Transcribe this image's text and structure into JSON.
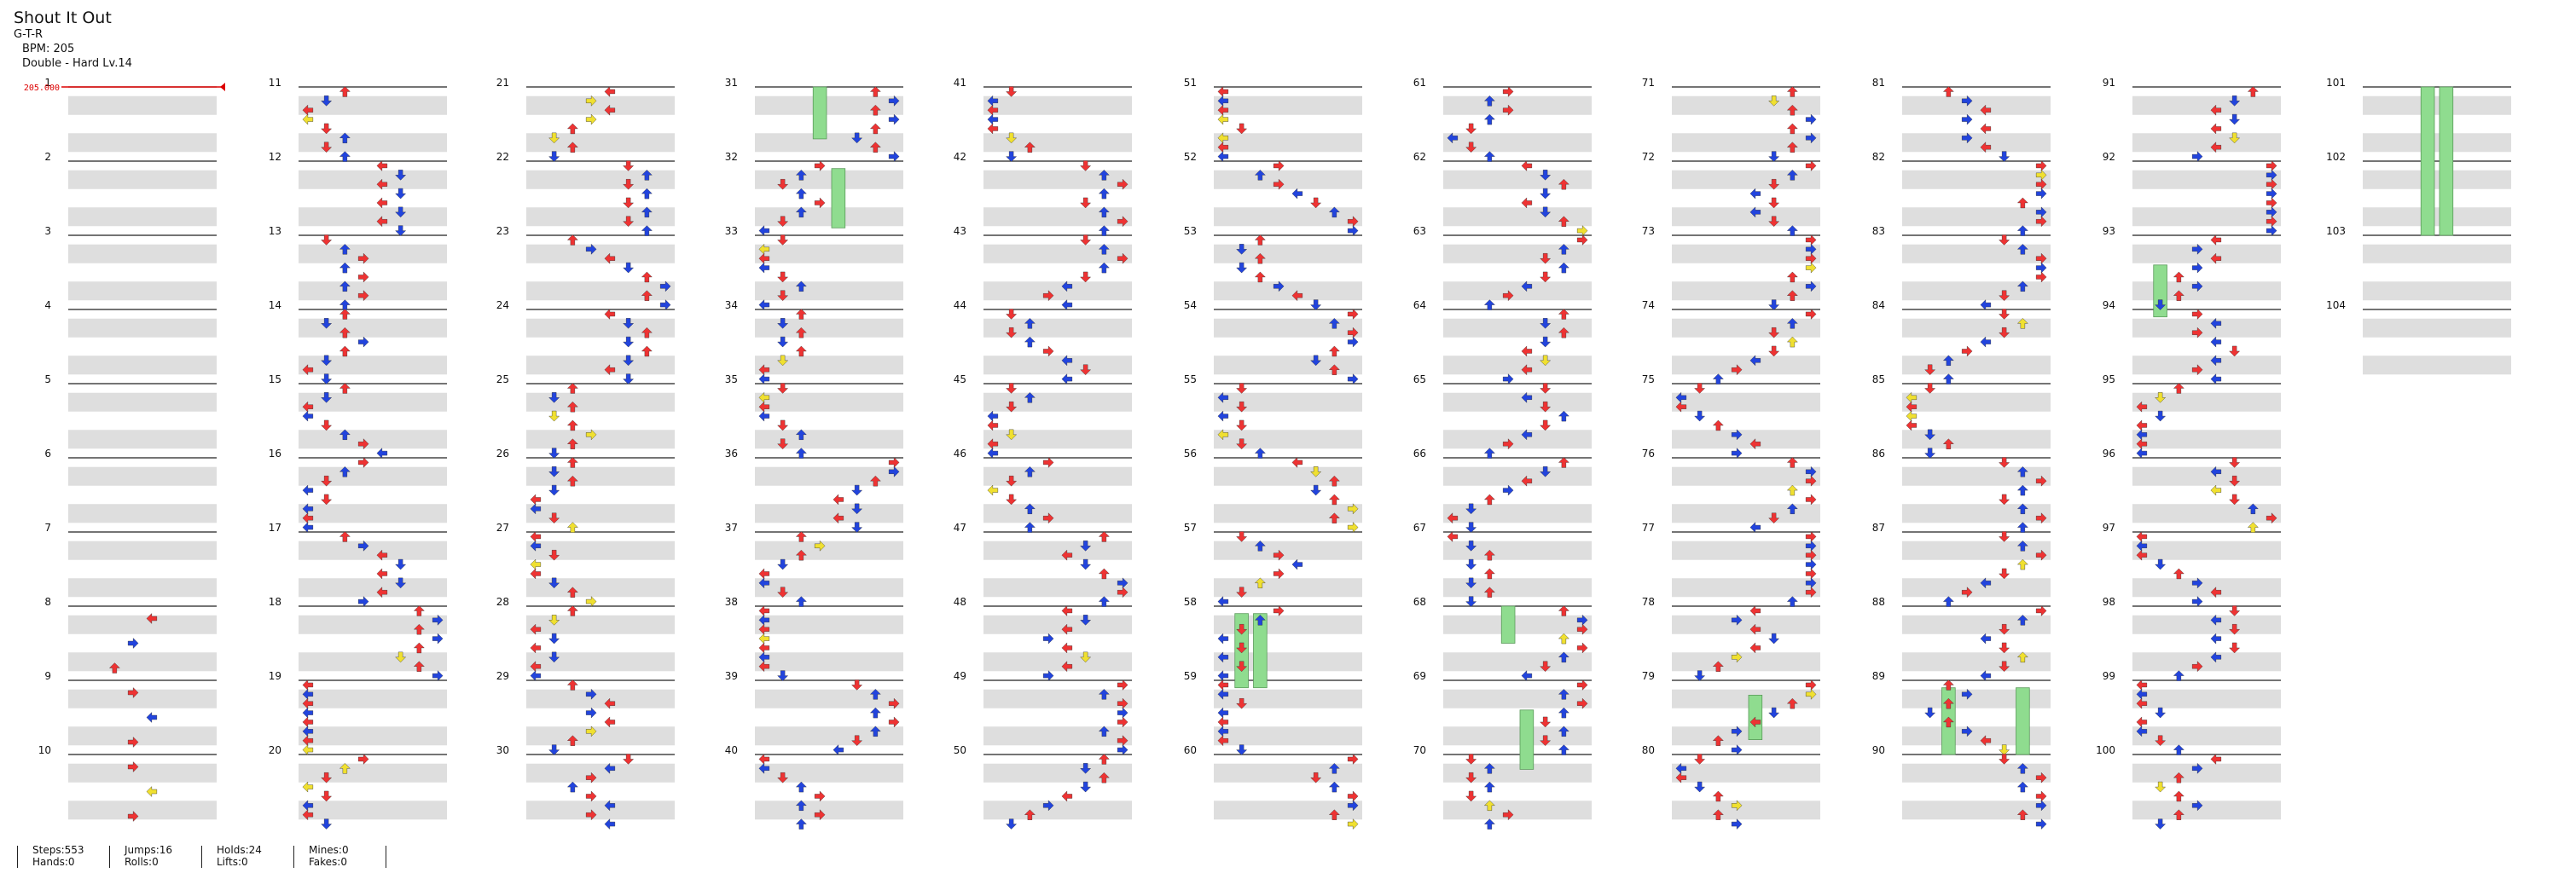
{
  "header": {
    "title": "Shout It Out",
    "artist": "G-T-R",
    "bpm": "BPM: 205",
    "difficulty": "Double - Hard Lv.14"
  },
  "bpm_marker": "205.000",
  "colors": {
    "red_note": "#ee3333",
    "blue_note": "#2244dd",
    "yellow_note": "#f0e030",
    "hold": "#8fdc8f",
    "band": "#dedede",
    "bpm_line": "#dd0000"
  },
  "measure_labels": [
    "1",
    "2",
    "3",
    "4",
    "5",
    "6",
    "7",
    "8",
    "9",
    "10",
    "11",
    "12",
    "13",
    "14",
    "15",
    "16",
    "17",
    "18",
    "19",
    "20",
    "21",
    "22",
    "23",
    "24",
    "25",
    "26",
    "27",
    "28",
    "29",
    "30",
    "31",
    "32",
    "33",
    "34",
    "35",
    "36",
    "37",
    "38",
    "39",
    "40",
    "41",
    "42",
    "43",
    "44",
    "45",
    "46",
    "47",
    "48",
    "49",
    "50",
    "51",
    "52",
    "53",
    "54",
    "55",
    "56",
    "57",
    "58",
    "59",
    "60",
    "61",
    "62",
    "63",
    "64",
    "65",
    "66",
    "67",
    "68",
    "69",
    "70",
    "71",
    "72",
    "73",
    "74",
    "75",
    "76",
    "77",
    "78",
    "79",
    "80",
    "81",
    "82",
    "83",
    "84",
    "85",
    "86",
    "87",
    "88",
    "89",
    "90",
    "91",
    "92",
    "93",
    "94",
    "95",
    "96",
    "97",
    "98",
    "99",
    "100",
    "101",
    "102",
    "103",
    "104"
  ],
  "stats": {
    "steps": "Steps:553",
    "hands": "Hands:0",
    "jumps": "Jumps:16",
    "rolls": "Rolls:0",
    "holds": "Holds:24",
    "lifts": "Lifts:0",
    "mines": "Mines:0",
    "fakes": "Fakes:0"
  }
}
